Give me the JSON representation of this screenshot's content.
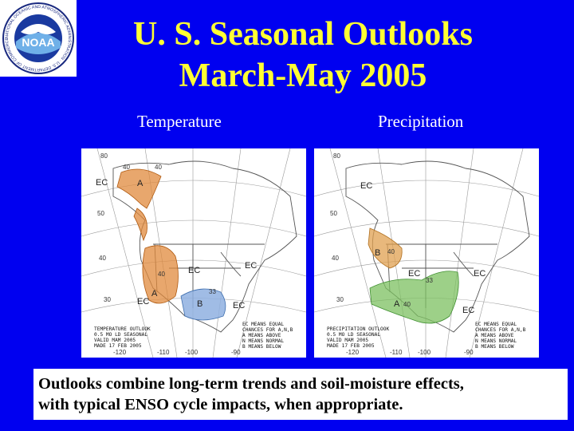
{
  "slide": {
    "title_line1": "U. S. Seasonal Outlooks",
    "title_line2": "March-May 2005",
    "caption_line1": "Outlooks combine long-term trends and soil-moisture effects,",
    "caption_line2": "with typical ENSO cycle impacts, when appropriate."
  },
  "logo": {
    "name": "NOAA",
    "ring_text": "NATIONAL OCEANIC AND ATMOSPHERIC ADMINISTRATION · U.S. DEPARTMENT OF COMMERCE"
  },
  "maps": [
    {
      "label": "Temperature",
      "box_lines": [
        "TEMPERATURE OUTLOOK",
        "0.5 MO LD SEASONAL",
        "VALID MAM 2005",
        "MADE 17 FEB 2005"
      ],
      "legend_lines": [
        "EC MEANS EQUAL",
        "CHANCES FOR A,N,B",
        "A MEANS ABOVE",
        "N MEANS NORMAL",
        "B MEANS BELOW"
      ],
      "colors": {
        "above": "#e08a3c",
        "below": "#8fb0e0"
      }
    },
    {
      "label": "Precipitation",
      "box_lines": [
        "PRECIPITATION OUTLOOK",
        "0.5 MO LD SEASONAL",
        "VALID MAM 2005",
        "MADE 17 FEB 2005"
      ],
      "legend_lines": [
        "EC MEANS EQUAL",
        "CHANCES FOR A,N,B",
        "A MEANS ABOVE",
        "N MEANS NORMAL",
        "B MEANS BELOW"
      ],
      "colors": {
        "below": "#e0a050",
        "above": "#7cc060"
      }
    }
  ],
  "map_labels": {
    "ec": "EC",
    "a": "A",
    "b": "B",
    "p33": "33",
    "p40": "40",
    "lat80": "80",
    "lat50": "50",
    "lat40": "40",
    "lat30": "30",
    "lon120": "-120",
    "lon110": "-110",
    "lon100": "-100",
    "lon90": "-90"
  }
}
